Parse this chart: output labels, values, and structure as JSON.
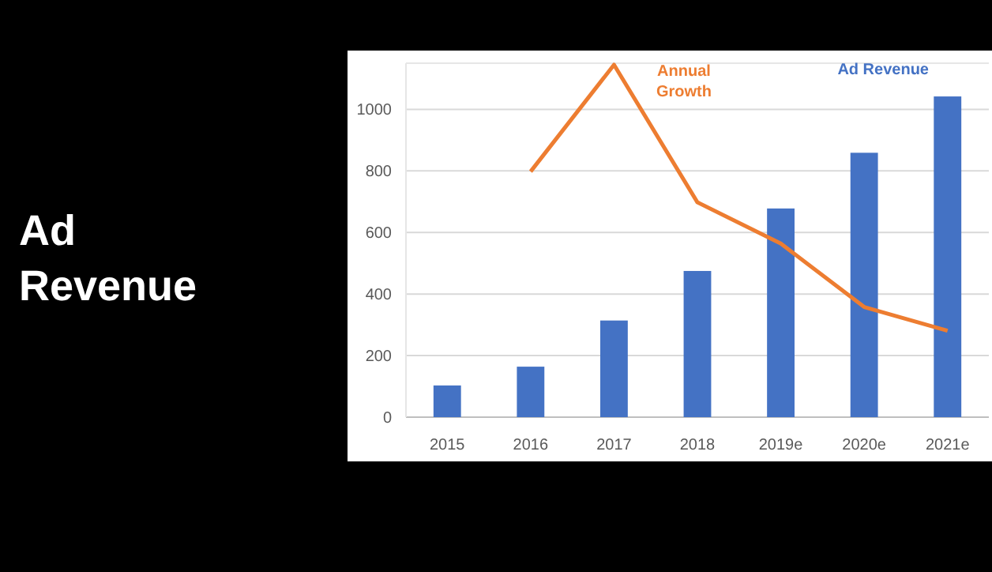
{
  "chart_data": {
    "type": "bar",
    "title": "Ad Revenue",
    "categories": [
      "2015",
      "2016",
      "2017",
      "2018",
      "2019e",
      "2020e",
      "2021e"
    ],
    "series": [
      {
        "name": "Ad Revenue",
        "color": "#4472c4",
        "values": [
          103,
          164,
          314,
          475,
          678,
          859,
          1042
        ]
      },
      {
        "name": "Annual Growth",
        "type": "line",
        "color": "#ed7d31",
        "values": [
          null,
          798,
          1145,
          698,
          564,
          358,
          281
        ]
      }
    ],
    "ylim": [
      0,
      1150
    ],
    "yticks": [
      0,
      200,
      400,
      600,
      800,
      1000
    ],
    "grid": "y",
    "legend": "top",
    "marker": "none",
    "line_style": "solid"
  }
}
